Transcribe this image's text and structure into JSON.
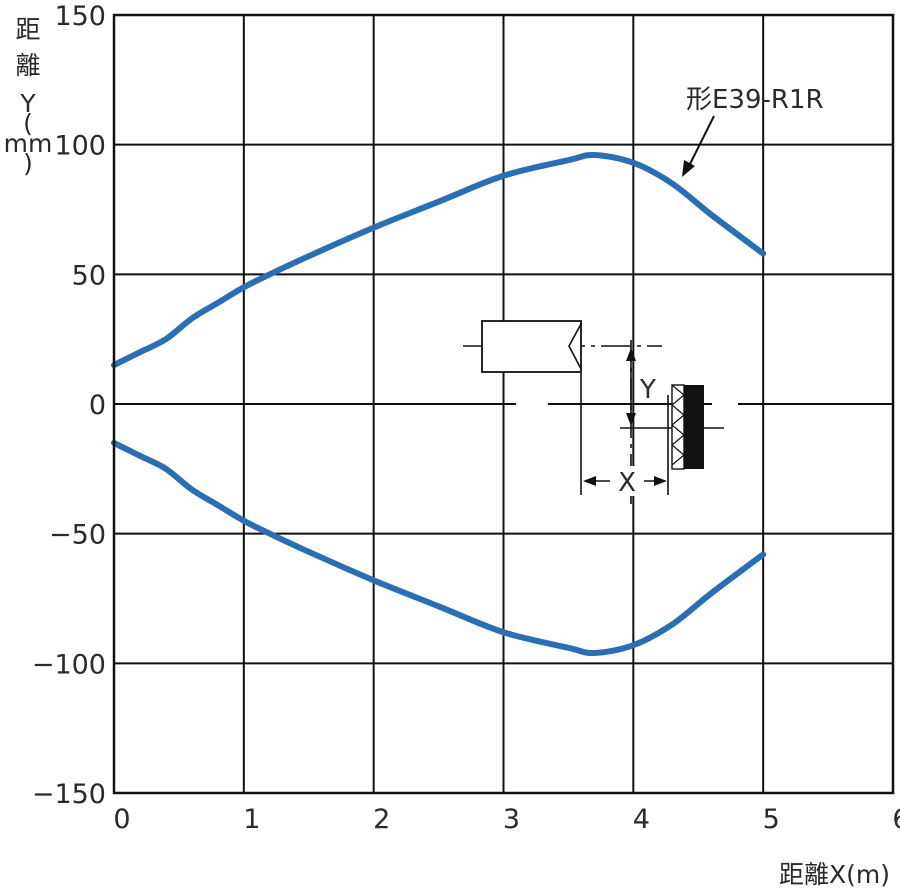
{
  "chart_data": {
    "type": "line",
    "title": "",
    "xlabel": "距離X(m)",
    "ylabel_chars": [
      "距",
      "離",
      "Y",
      "(",
      "mm",
      ")"
    ],
    "xlim": [
      0,
      6
    ],
    "ylim": [
      -150,
      150
    ],
    "x_ticks": [
      0,
      1,
      2,
      3,
      4,
      5,
      6
    ],
    "y_ticks": [
      150,
      100,
      50,
      0,
      -50,
      -100,
      -150
    ],
    "x_tick_labels": [
      "0",
      "1",
      "2",
      "3",
      "4",
      "5",
      "6"
    ],
    "y_tick_labels": [
      "150",
      "100",
      "50",
      "0",
      "−50",
      "−100",
      "−150"
    ],
    "grid": true,
    "series_color": "#2a6fb3",
    "series": [
      {
        "name": "形E39-R1R",
        "x": [
          0,
          0.2,
          0.4,
          0.6,
          0.8,
          1.0,
          1.2,
          1.5,
          2.0,
          2.5,
          3.0,
          3.5,
          3.7,
          4.0,
          4.3,
          4.6,
          5.0
        ],
        "y": [
          15,
          20,
          25,
          33,
          39,
          45,
          50,
          57,
          68,
          78,
          88,
          94,
          96,
          93,
          85,
          73,
          58
        ]
      },
      {
        "name": "",
        "x": [
          0,
          0.2,
          0.4,
          0.6,
          0.8,
          1.0,
          1.2,
          1.5,
          2.0,
          2.5,
          3.0,
          3.5,
          3.7,
          4.0,
          4.3,
          4.6,
          5.0
        ],
        "y": [
          -15,
          -20,
          -25,
          -33,
          -39,
          -45,
          -50,
          -57,
          -68,
          -78,
          -88,
          -94,
          -96,
          -93,
          -85,
          -73,
          -58
        ]
      }
    ],
    "annotation": {
      "text": "形E39-R1R"
    },
    "inset": {
      "x_label": "X",
      "y_label": "Y"
    }
  }
}
